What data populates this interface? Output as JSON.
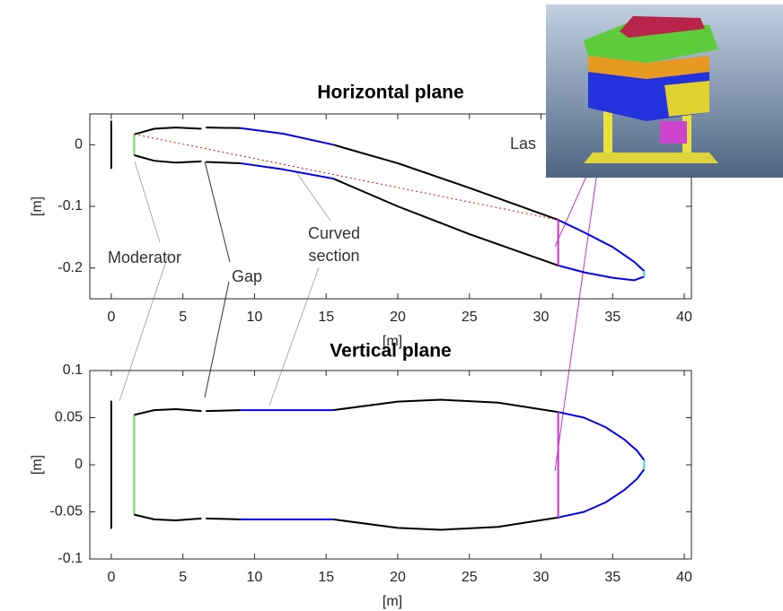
{
  "chart_data": [
    {
      "type": "line",
      "title": "Horizontal plane",
      "xlabel": "[m]",
      "ylabel": "[m]",
      "xlim": [
        -1.5,
        40.5
      ],
      "ylim": [
        -0.25,
        0.05
      ],
      "xticks": [
        0,
        5,
        10,
        15,
        20,
        25,
        30,
        35,
        40
      ],
      "yticks": [
        -0.2,
        -0.1,
        0
      ],
      "annotations": [
        "Moderator",
        "Gap",
        "Curved",
        "section",
        "Las"
      ],
      "series": [
        {
          "color": "#000000",
          "x": [
            0,
            0
          ],
          "values": [
            0.039,
            -0.039
          ]
        },
        {
          "color": "#66dd66",
          "x": [
            1.6,
            1.6
          ],
          "values": [
            0.017,
            -0.017
          ]
        },
        {
          "color": "#000000",
          "x": [
            1.6,
            3,
            4.5,
            6.3,
            6.45,
            6.6,
            9,
            12,
            15.5,
            20,
            25,
            31.2
          ],
          "values": [
            0.017,
            0.026,
            0.028,
            0.026,
            null,
            0.028,
            0.027,
            null,
            0.0,
            -0.03,
            -0.07,
            -0.122
          ]
        },
        {
          "color": "#000000",
          "x": [
            1.6,
            3,
            4.5,
            6.3,
            6.45,
            6.6,
            9,
            12,
            15.5,
            20,
            25,
            31.2
          ],
          "values": [
            -0.017,
            -0.026,
            -0.029,
            -0.027,
            null,
            -0.028,
            -0.03,
            null,
            -0.055,
            -0.1,
            -0.145,
            -0.196
          ]
        },
        {
          "color": "#0000ff",
          "x": [
            9,
            12,
            15.5,
            23,
            31.2,
            33,
            35,
            36.5,
            37.2
          ],
          "values": [
            0.027,
            0.018,
            0.0,
            null,
            -0.122,
            -0.142,
            -0.166,
            -0.19,
            -0.205
          ]
        },
        {
          "color": "#0000ff",
          "x": [
            9,
            12,
            15.5,
            23,
            31.2,
            33,
            35,
            36.5,
            37.2
          ],
          "values": [
            -0.03,
            -0.04,
            -0.055,
            null,
            -0.196,
            -0.207,
            -0.216,
            -0.22,
            -0.214
          ]
        },
        {
          "color": "#cc33cc",
          "x": [
            31.2,
            31.2
          ],
          "values": [
            -0.122,
            -0.196
          ]
        },
        {
          "color": "#44ccee",
          "x": [
            37.2,
            37.2
          ],
          "values": [
            -0.205,
            -0.214
          ]
        },
        {
          "color": "#ff0000",
          "dashed": true,
          "x": [
            1.6,
            31.2
          ],
          "values": [
            0.017,
            -0.122
          ]
        }
      ]
    },
    {
      "type": "line",
      "title": "Vertical plane",
      "xlabel": "[m]",
      "ylabel": "[m]",
      "xlim": [
        -1.5,
        40.5
      ],
      "ylim": [
        -0.1,
        0.1
      ],
      "xticks": [
        0,
        5,
        10,
        15,
        20,
        25,
        30,
        35,
        40
      ],
      "yticks": [
        -0.1,
        -0.05,
        0,
        0.05,
        0.1
      ],
      "series": [
        {
          "color": "#000000",
          "x": [
            0,
            0
          ],
          "values": [
            0.068,
            -0.068
          ]
        },
        {
          "color": "#66dd66",
          "x": [
            1.6,
            1.6
          ],
          "values": [
            0.053,
            -0.053
          ]
        },
        {
          "color": "#000000",
          "x": [
            1.6,
            3,
            4.5,
            6.3,
            6.45,
            6.6,
            9,
            12,
            15.5,
            20,
            23,
            27,
            31.2
          ],
          "values": [
            0.053,
            0.058,
            0.059,
            0.057,
            null,
            0.057,
            0.058,
            null,
            0.058,
            0.067,
            0.069,
            0.066,
            0.056
          ]
        },
        {
          "color": "#000000",
          "x": [
            1.6,
            3,
            4.5,
            6.3,
            6.45,
            6.6,
            9,
            12,
            15.5,
            20,
            23,
            27,
            31.2
          ],
          "values": [
            -0.053,
            -0.058,
            -0.059,
            -0.057,
            null,
            -0.057,
            -0.058,
            null,
            -0.058,
            -0.067,
            -0.069,
            -0.066,
            -0.056
          ]
        },
        {
          "color": "#0000ff",
          "x": [
            9,
            15.5,
            23,
            31.2,
            33,
            34.5,
            35.8,
            36.7,
            37.2
          ],
          "values": [
            0.058,
            0.058,
            null,
            0.056,
            0.05,
            0.04,
            0.027,
            0.015,
            0.005
          ]
        },
        {
          "color": "#0000ff",
          "x": [
            9,
            15.5,
            23,
            31.2,
            33,
            34.5,
            35.8,
            36.7,
            37.2
          ],
          "values": [
            -0.058,
            -0.058,
            null,
            -0.056,
            -0.05,
            -0.04,
            -0.027,
            -0.015,
            -0.005
          ]
        },
        {
          "color": "#cc33cc",
          "x": [
            31.2,
            31.2
          ],
          "values": [
            0.056,
            -0.056
          ]
        },
        {
          "color": "#44ccee",
          "x": [
            37.2,
            37.2
          ],
          "values": [
            0.005,
            -0.005
          ]
        }
      ]
    }
  ]
}
